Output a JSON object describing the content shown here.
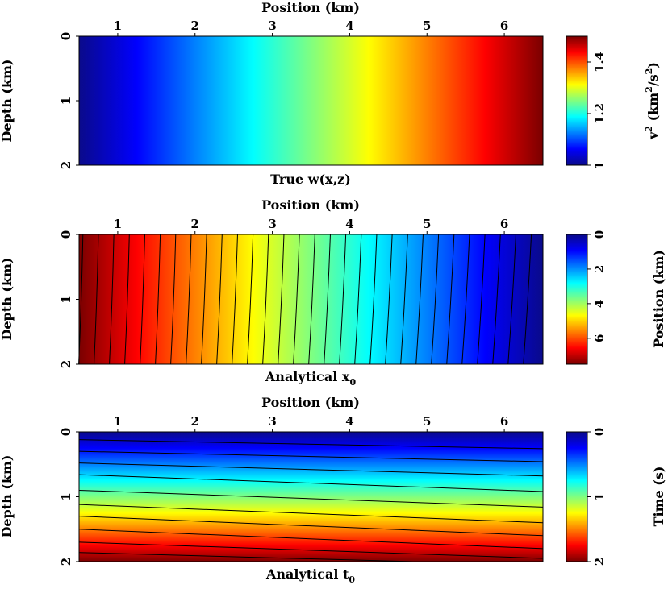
{
  "chart_data": [
    {
      "type": "heatmap",
      "title": "True w(x,z)",
      "xlabel": "Position (km)",
      "ylabel": "Depth (km)",
      "xlim": [
        0.5,
        6.5
      ],
      "ylim": [
        0,
        2
      ],
      "xticks": [
        "1",
        "2",
        "3",
        "4",
        "5",
        "6"
      ],
      "yticks": [
        "0",
        "1",
        "2"
      ],
      "colorbar": {
        "label": "v (km /s )",
        "ticks": [
          "1",
          "1.2",
          "1.4"
        ],
        "range": [
          1.0,
          1.5
        ],
        "reversed": false
      },
      "field": "w(x) = 1 + 0.5*(x-0.5)/6, varies with position only",
      "contours": []
    },
    {
      "type": "heatmap",
      "title": "Analytical x",
      "title_sub": "0",
      "xlabel": "Position (km)",
      "ylabel": "Depth (km)",
      "xlim": [
        0.5,
        6.5
      ],
      "ylim": [
        0,
        2
      ],
      "xticks": [
        "1",
        "2",
        "3",
        "4",
        "5",
        "6"
      ],
      "yticks": [
        "0",
        "1",
        "2"
      ],
      "colorbar": {
        "label": "Position (km)",
        "ticks": [
          "0",
          "2",
          "4",
          "6"
        ],
        "range": [
          0,
          7.5
        ],
        "reversed": true
      },
      "contours": {
        "count": 30,
        "surface_x_km": [
          0.55,
          6.35
        ],
        "depth_km": 2,
        "drift_km": -0.05
      }
    },
    {
      "type": "heatmap",
      "title": "Analytical t",
      "title_sub": "0",
      "xlabel": "Position (km)",
      "ylabel": "Depth (km)",
      "xlim": [
        0.5,
        6.5
      ],
      "ylim": [
        0,
        2
      ],
      "xticks": [
        "1",
        "2",
        "3",
        "4",
        "5",
        "6"
      ],
      "yticks": [
        "0",
        "1",
        "2"
      ],
      "colorbar": {
        "label": "Time (s)",
        "ticks": [
          "0",
          "1",
          "2"
        ],
        "range": [
          0,
          2
        ],
        "reversed": true
      },
      "contours": {
        "left_depth_km": [
          0.12,
          0.3,
          0.48,
          0.66,
          0.9,
          1.12,
          1.3,
          1.5,
          1.7,
          1.86
        ],
        "right_depth_km": [
          0.26,
          0.46,
          0.68,
          0.92,
          1.16,
          1.4,
          1.6,
          1.8,
          1.95
        ]
      }
    }
  ]
}
